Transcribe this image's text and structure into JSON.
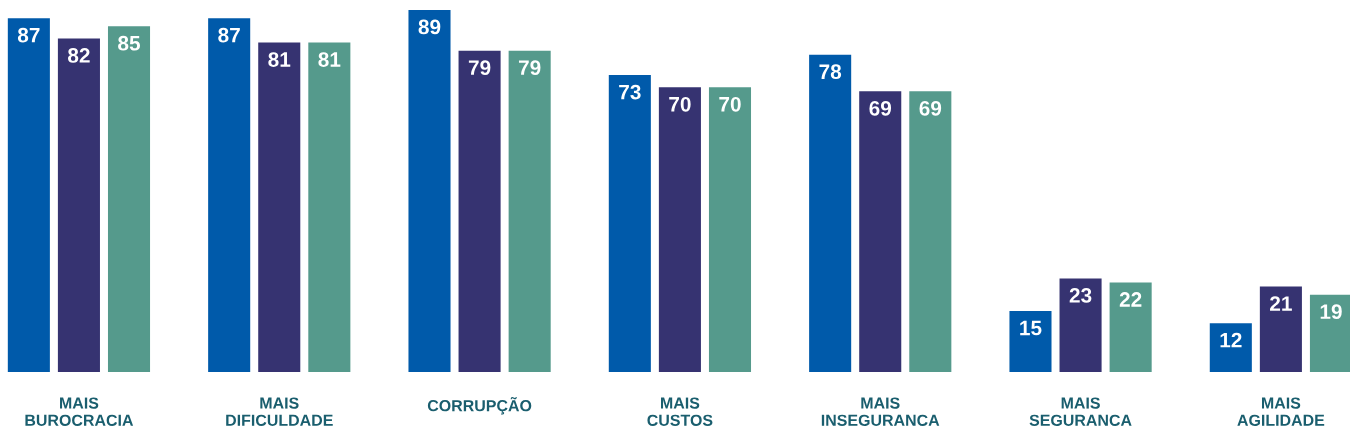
{
  "chart_data": {
    "type": "bar",
    "categories": [
      "MAIS\nBUROCRACIA",
      "MAIS\nDIFICULDADE",
      "CORRUPÇÃO",
      "MAIS\nCUSTOS",
      "MAIS\nINSEGURANCA",
      "MAIS\nSEGURANCA",
      "MAIS\nAGILIDADE"
    ],
    "series": [
      {
        "color": "#005aaa",
        "values": [
          87,
          87,
          89,
          73,
          78,
          15,
          12
        ]
      },
      {
        "color": "#363371",
        "values": [
          82,
          81,
          79,
          70,
          69,
          23,
          21
        ]
      },
      {
        "color": "#559a8c",
        "values": [
          85,
          81,
          79,
          70,
          69,
          22,
          19
        ]
      }
    ],
    "data_labels": true,
    "tick_labels": "x",
    "grid": false,
    "legend": false
  }
}
